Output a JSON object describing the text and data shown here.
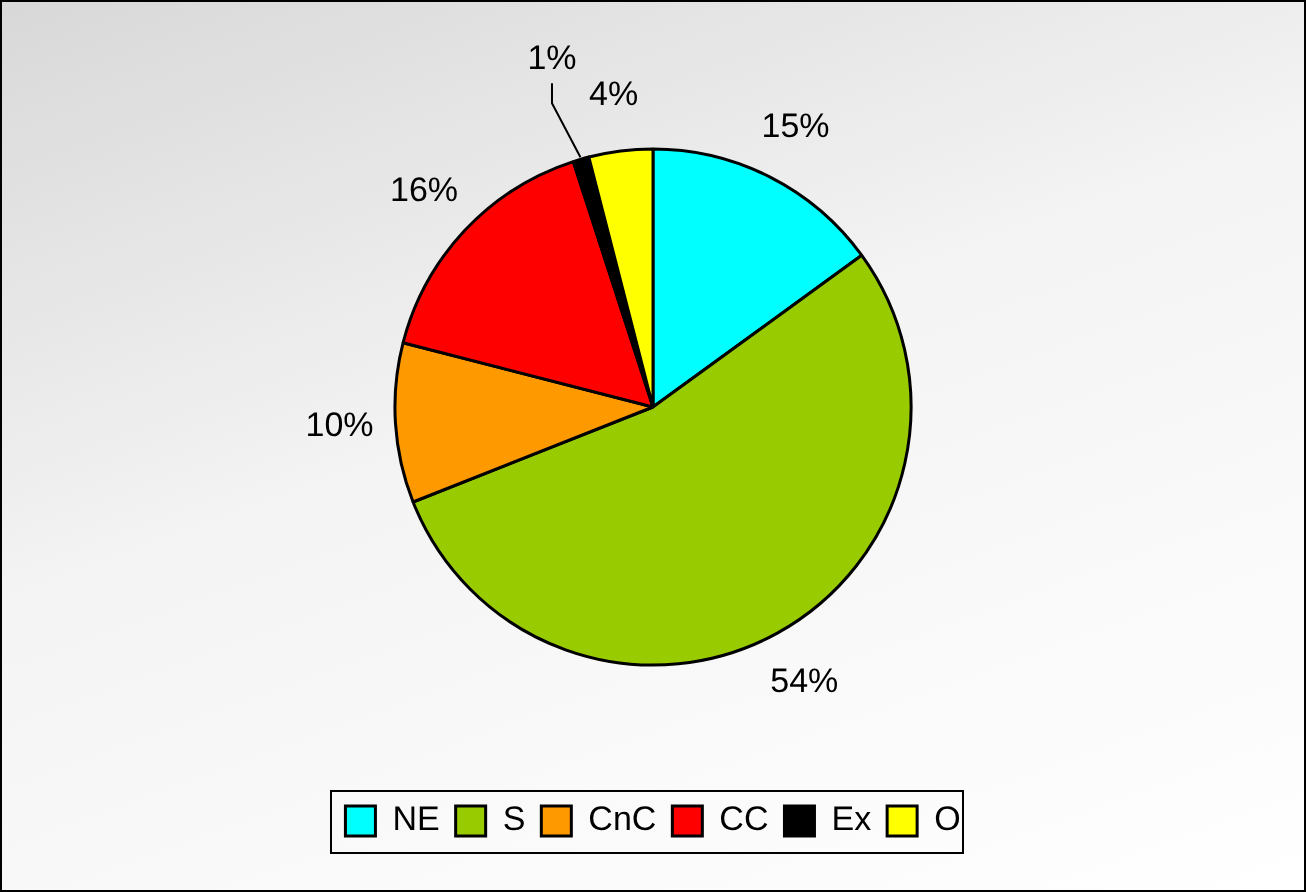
{
  "chart_data": {
    "type": "pie",
    "categories": [
      "NE",
      "S",
      "CnC",
      "CC",
      "Ex",
      "O"
    ],
    "values": [
      15,
      54,
      10,
      16,
      1,
      4
    ],
    "colors": [
      "#00ffff",
      "#99cc00",
      "#ff9900",
      "#ff0000",
      "#000000",
      "#ffff00"
    ],
    "value_labels": [
      "15%",
      "54%",
      "10%",
      "16%",
      "1%",
      "4%"
    ],
    "legend": "bottom"
  }
}
